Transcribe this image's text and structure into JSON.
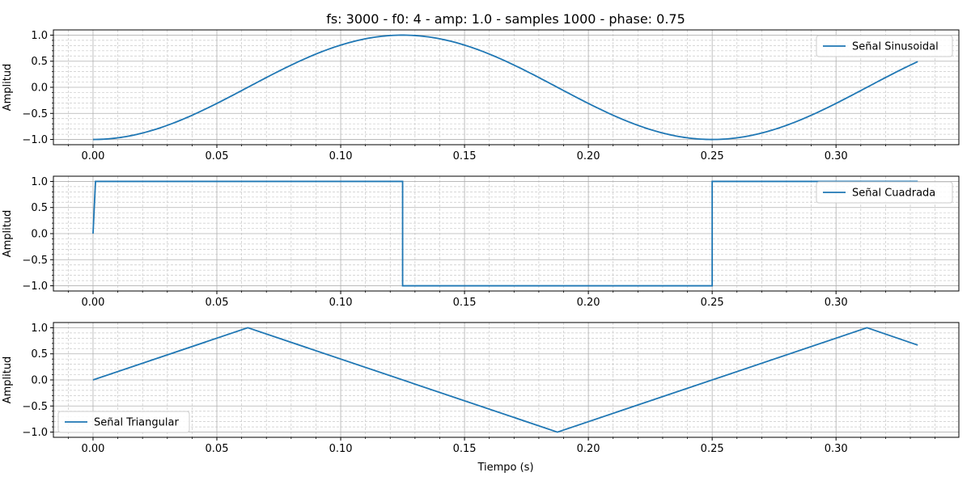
{
  "chart_data": {
    "type": "line",
    "title": "fs: 3000 - f0: 4 - amp: 1.0 - samples 1000 - phase: 0.75",
    "xlabel": "Tiempo (s)",
    "ylabel": "Amplitud",
    "xlim": [
      -0.016,
      0.3496
    ],
    "x_ticks": [
      "0.00",
      "0.05",
      "0.10",
      "0.15",
      "0.20",
      "0.25",
      "0.30"
    ],
    "y_ticks": [
      "−1.0",
      "−0.5",
      "0.0",
      "0.5",
      "1.0"
    ],
    "line_color": "#1f77b4",
    "grid": true,
    "minor_grid": true,
    "subplots": [
      {
        "name": "Señal Sinusoidal",
        "legend": "top-right",
        "ylim": [
          -1.1,
          1.1
        ],
        "points": [
          [
            0,
            -1
          ],
          [
            0.125,
            1
          ],
          [
            0.25,
            -1
          ],
          [
            0.333,
            0.5
          ]
        ]
      },
      {
        "name": "Señal Cuadrada",
        "legend": "top-right",
        "ylim": [
          -1.1,
          1.1
        ],
        "points": [
          [
            0,
            0
          ],
          [
            0.001,
            1
          ],
          [
            0.125,
            1
          ],
          [
            0.125,
            -1
          ],
          [
            0.25,
            -1
          ],
          [
            0.25,
            1
          ],
          [
            0.333,
            1
          ]
        ]
      },
      {
        "name": "Señal Triangular",
        "legend": "bottom-left",
        "ylim": [
          -1.1,
          1.1
        ],
        "points": [
          [
            0,
            0
          ],
          [
            0.0625,
            1
          ],
          [
            0.1875,
            -1
          ],
          [
            0.3125,
            1
          ],
          [
            0.333,
            0.667
          ]
        ]
      }
    ]
  }
}
